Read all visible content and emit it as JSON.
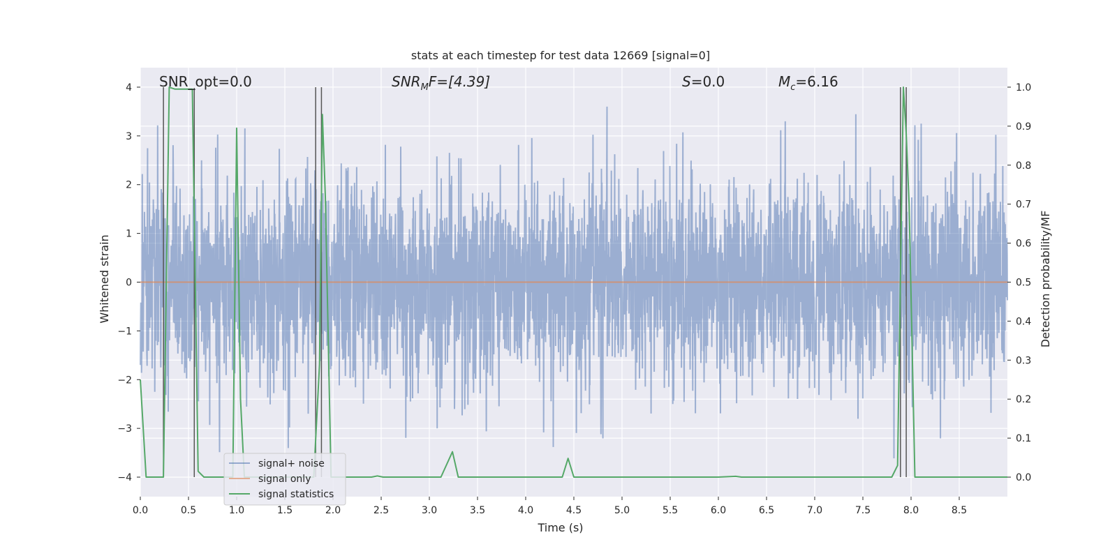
{
  "chart_data": {
    "type": "line",
    "title": "stats at each timestep for test data 12669 [signal=0]",
    "xlabel": "Time (s)",
    "ylabel": "Whitened strain",
    "ylabel_right": "Detection probability/MF",
    "xlim": [
      0,
      9
    ],
    "ylim": [
      -4.4,
      4.4
    ],
    "ylim_right": [
      -0.05,
      1.05
    ],
    "xticks": [
      "0.0",
      "0.5",
      "1.0",
      "1.5",
      "2.0",
      "2.5",
      "3.0",
      "3.5",
      "4.0",
      "4.5",
      "5.0",
      "5.5",
      "6.0",
      "6.5",
      "7.0",
      "7.5",
      "8.0",
      "8.5"
    ],
    "yticks": [
      "4",
      "3",
      "2",
      "1",
      "0",
      "−1",
      "−2",
      "−3",
      "−4"
    ],
    "yticks_right": [
      "1.0",
      "0.9",
      "0.8",
      "0.7",
      "0.6",
      "0.5",
      "0.4",
      "0.3",
      "0.2",
      "0.1",
      "0.0"
    ],
    "annotations": {
      "snr_opt": "SNR_opt=0.0",
      "snr_mf_main": "SNR",
      "snr_mf_sub": "M",
      "snr_mf_tail": "F=[4.39]",
      "s_main": "S",
      "s_tail": "=0.0",
      "mc_main": "M",
      "mc_sub": "c",
      "mc_tail": "=6.16"
    },
    "legend": {
      "position": "lower-left",
      "entries": [
        "signal+ noise",
        "signal only",
        "signal statistics"
      ]
    },
    "colors": {
      "background": "#eaeaf2",
      "grid": "#ffffff",
      "noise": "#4c72b0",
      "signal": "#dd8452",
      "stats": "#55a868",
      "markers": "#555555"
    },
    "series": [
      {
        "name": "signal+ noise",
        "noise_envelope": {
          "sigma": 1.0,
          "peak_max": 3.65,
          "peak_min": -4.0
        }
      },
      {
        "name": "signal only",
        "x": [
          0,
          9
        ],
        "y": [
          0,
          0
        ]
      },
      {
        "name": "signal statistics",
        "x": [
          0.0,
          0.06,
          0.12,
          0.18,
          0.24,
          0.3,
          0.36,
          0.42,
          0.48,
          0.54,
          0.6,
          0.66,
          0.72,
          0.78,
          0.84,
          0.9,
          0.96,
          1.0,
          1.04,
          1.08,
          1.14,
          1.2,
          1.26,
          1.32,
          1.38,
          1.44,
          1.5,
          1.56,
          1.62,
          1.68,
          1.74,
          1.8,
          1.86,
          1.89,
          1.92,
          1.98,
          2.04,
          2.1,
          2.16,
          2.22,
          2.28,
          2.34,
          2.4,
          2.46,
          2.52,
          3.0,
          3.12,
          3.24,
          3.3,
          3.36,
          4.0,
          4.38,
          4.44,
          4.5,
          4.56,
          5.0,
          6.0,
          6.18,
          6.24,
          7.0,
          7.8,
          7.86,
          7.92,
          7.95,
          7.98,
          8.04,
          8.1,
          8.2,
          9.0
        ],
        "y": [
          0.25,
          0.0,
          0.0,
          0.0,
          0.0,
          1.0,
          0.995,
          0.995,
          0.995,
          0.995,
          0.015,
          0.0,
          0.0,
          0.0,
          0.0,
          0.0,
          0.0,
          0.895,
          0.2,
          0.0,
          0.0,
          0.0,
          0.0,
          0.0,
          0.0,
          0.0,
          0.0,
          0.0,
          0.0,
          0.0,
          0.0,
          0.0,
          0.29,
          0.93,
          0.72,
          0.0,
          0.0,
          0.0,
          0.0,
          0.0,
          0.0,
          0.0,
          0.0,
          0.003,
          0.0,
          0.0,
          0.0,
          0.065,
          0.0,
          0.0,
          0.0,
          0.0,
          0.048,
          0.0,
          0.0,
          0.0,
          0.0,
          0.002,
          0.0,
          0.0,
          0.0,
          0.03,
          1.0,
          0.88,
          0.7,
          0.0,
          0.0,
          0.0,
          0.0
        ]
      }
    ],
    "vertical_markers": [
      {
        "x": 0.24,
        "y_top": 1.0
      },
      {
        "x": 0.56,
        "y_top": 0.998
      },
      {
        "x": 1.82,
        "y_top": 1.0
      },
      {
        "x": 1.88,
        "y_top": 1.0
      },
      {
        "x": 7.89,
        "y_top": 1.0
      },
      {
        "x": 7.95,
        "y_top": 1.0
      }
    ]
  }
}
